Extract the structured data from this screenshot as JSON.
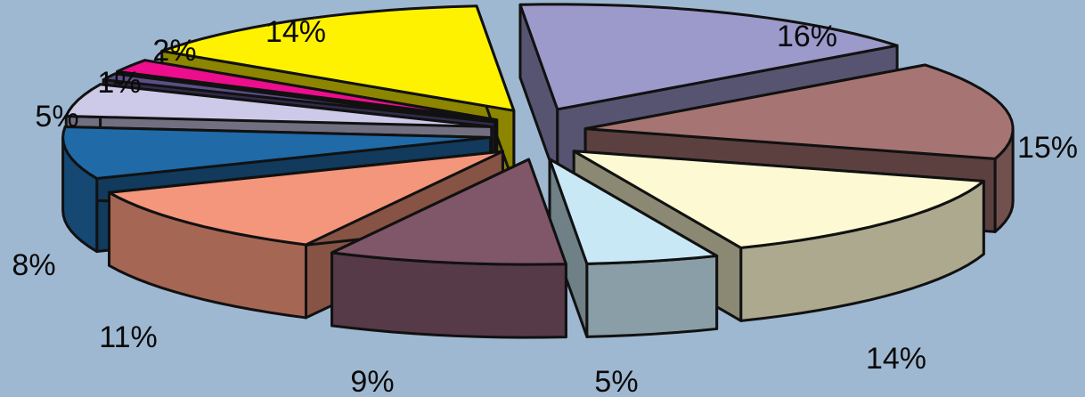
{
  "chart_data": {
    "type": "pie",
    "style": "3d-exploded",
    "background": "#9fb8d1",
    "slices": [
      {
        "label": "16%",
        "value": 16,
        "color": "#9c99cb"
      },
      {
        "label": "15%",
        "value": 15,
        "color": "#a67573"
      },
      {
        "label": "14%",
        "value": 14,
        "color": "#fdf9d3"
      },
      {
        "label": "5%",
        "value": 5,
        "color": "#c9e8f6"
      },
      {
        "label": "9%",
        "value": 9,
        "color": "#805669"
      },
      {
        "label": "11%",
        "value": 11,
        "color": "#f4967b"
      },
      {
        "label": "8%",
        "value": 8,
        "color": "#1f6aa7"
      },
      {
        "label": "5%",
        "value": 5,
        "color": "#cdc9e8"
      },
      {
        "label": "1%",
        "value": 1,
        "color": "#5a4f86"
      },
      {
        "label": "2%",
        "value": 2,
        "color": "#ec0e8c"
      },
      {
        "label": "14%",
        "value": 14,
        "color": "#fff200"
      }
    ]
  }
}
